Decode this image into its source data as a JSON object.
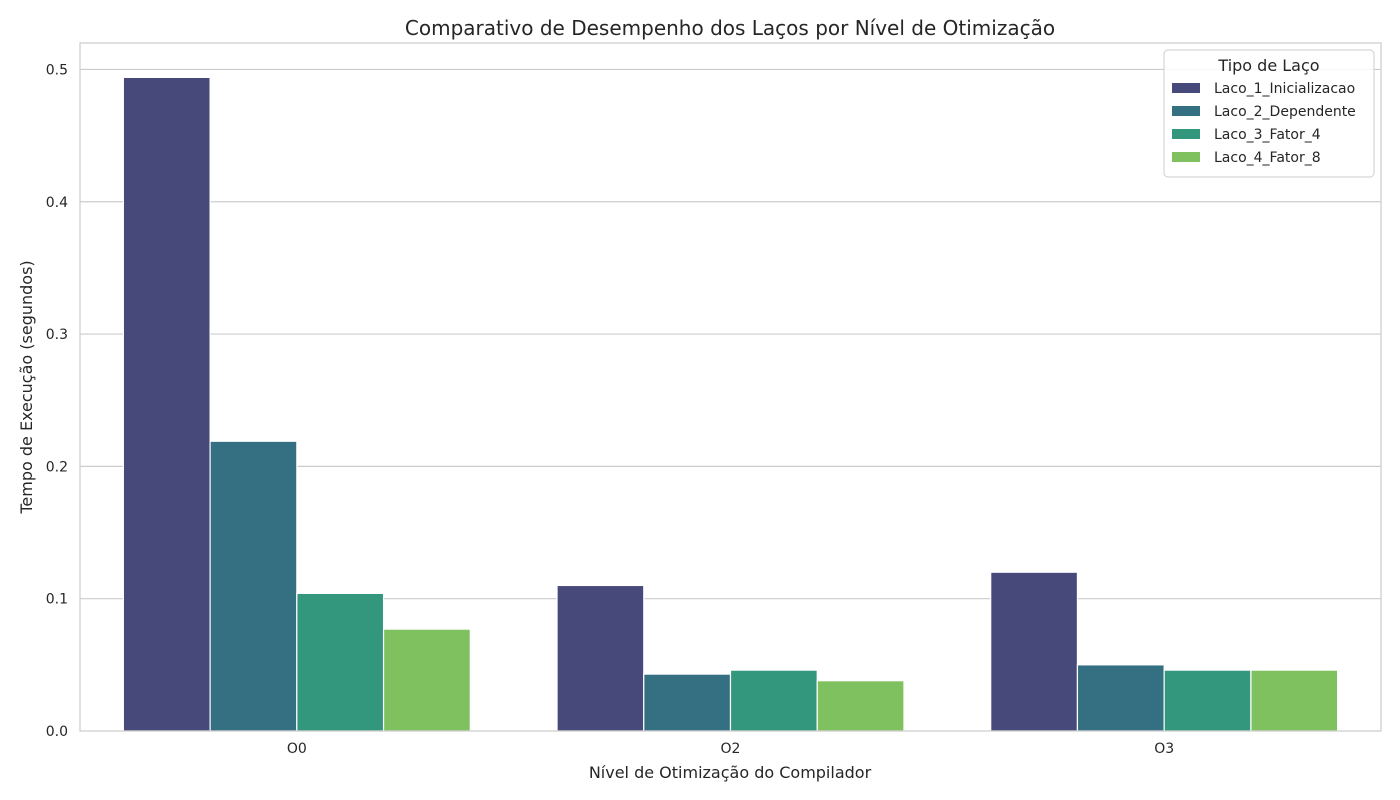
{
  "chart_data": {
    "type": "bar",
    "title": "Comparativo de Desempenho dos Laços por Nível de Otimização",
    "xlabel": "Nível de Otimização do Compilador",
    "ylabel": "Tempo de Execução (segundos)",
    "categories": [
      "O0",
      "O2",
      "O3"
    ],
    "ylim": [
      0,
      0.52
    ],
    "yticks": [
      "0.0",
      "0.1",
      "0.2",
      "0.3",
      "0.4",
      "0.5"
    ],
    "grid": "horizontal",
    "legend_title": "Tipo de Laço",
    "legend_position": "top-right",
    "series": [
      {
        "name": "Laco_1_Inicializacao",
        "color": "#48497b",
        "values": [
          0.494,
          0.11,
          0.12
        ]
      },
      {
        "name": "Laco_2_Dependente",
        "color": "#357082",
        "values": [
          0.219,
          0.043,
          0.05
        ]
      },
      {
        "name": "Laco_3_Fator_4",
        "color": "#32977d",
        "values": [
          0.104,
          0.046,
          0.046
        ]
      },
      {
        "name": "Laco_4_Fator_8",
        "color": "#7fc05f",
        "values": [
          0.077,
          0.038,
          0.046
        ]
      }
    ]
  }
}
